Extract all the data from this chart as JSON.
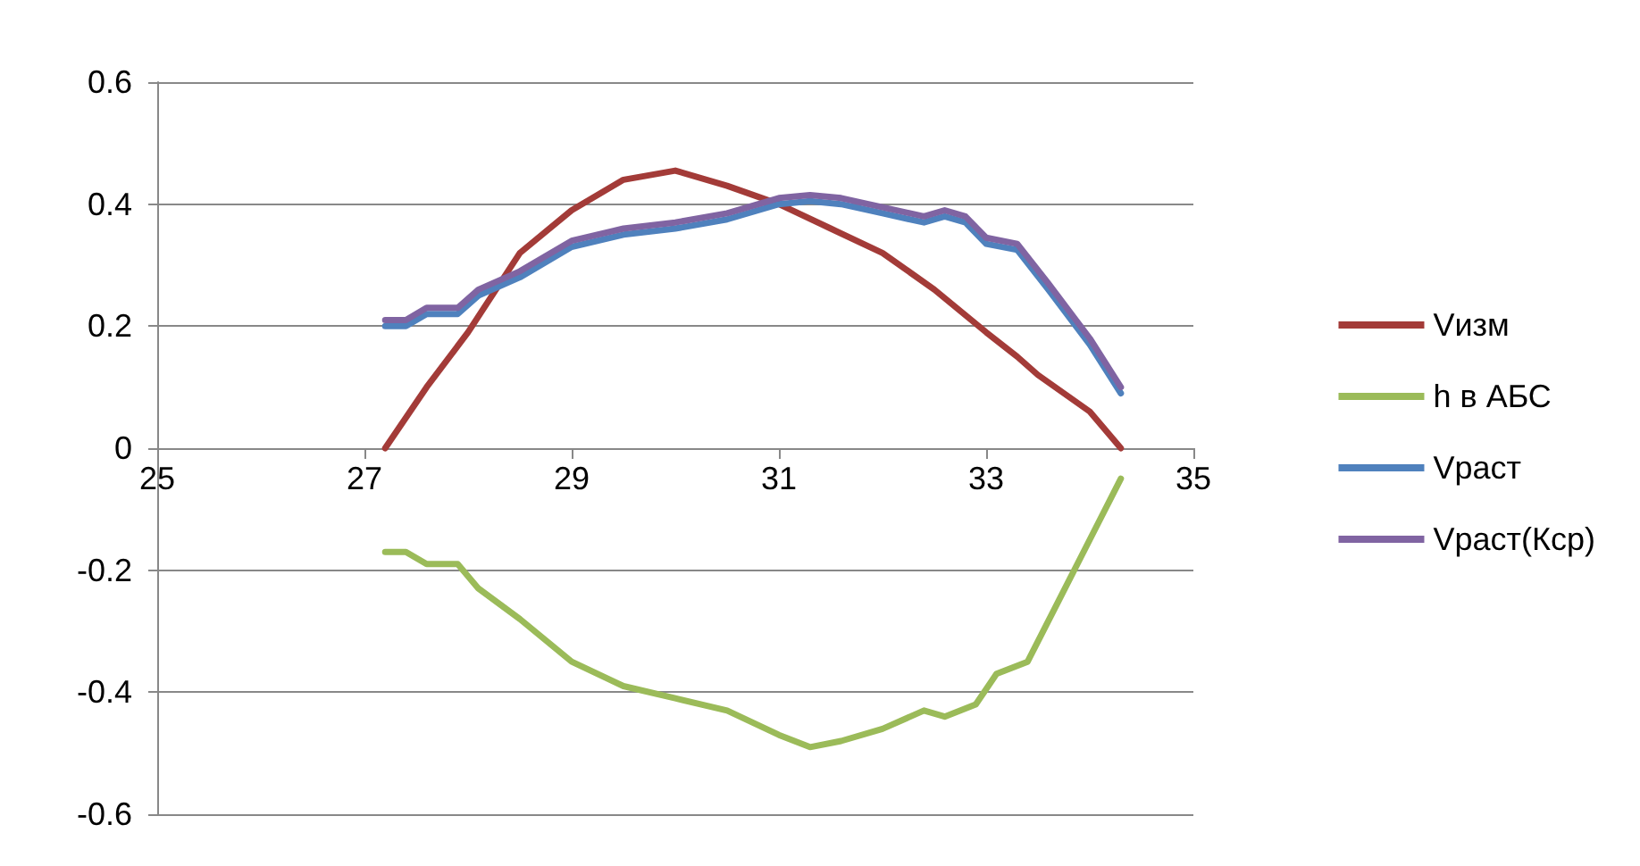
{
  "chart_data": {
    "type": "line",
    "xlim": [
      25,
      35
    ],
    "xticks": [
      25,
      27,
      29,
      31,
      33,
      35
    ],
    "ylim": [
      -0.6,
      0.6
    ],
    "yticks": [
      -0.6,
      -0.4,
      -0.2,
      0,
      0.2,
      0.4,
      0.6
    ],
    "grid": "y",
    "legend": "right",
    "marker": "none",
    "line_style": "solid",
    "series": [
      {
        "name": "Vизм",
        "color": "#a33b38",
        "x": [
          27.2,
          27.6,
          28,
          28.5,
          29,
          29.5,
          30,
          30.5,
          31,
          31.5,
          32,
          32.5,
          33,
          33.3,
          33.5,
          34,
          34.3
        ],
        "values": [
          0,
          0.1,
          0.19,
          0.32,
          0.39,
          0.44,
          0.455,
          0.43,
          0.4,
          0.36,
          0.32,
          0.26,
          0.19,
          0.15,
          0.12,
          0.06,
          0
        ]
      },
      {
        "name": "h в АБС",
        "color": "#9bbb59",
        "x": [
          27.2,
          27.4,
          27.6,
          27.9,
          28.1,
          28.5,
          29,
          29.5,
          30,
          30.5,
          31,
          31.3,
          31.6,
          32,
          32.4,
          32.6,
          32.9,
          33.1,
          33.4,
          33.7,
          34,
          34.3
        ],
        "values": [
          -0.17,
          -0.17,
          -0.19,
          -0.19,
          -0.23,
          -0.28,
          -0.35,
          -0.39,
          -0.41,
          -0.43,
          -0.47,
          -0.49,
          -0.48,
          -0.46,
          -0.43,
          -0.44,
          -0.42,
          -0.37,
          -0.35,
          -0.25,
          -0.15,
          -0.05
        ]
      },
      {
        "name": "Vраст",
        "color": "#4f81bd",
        "x": [
          27.2,
          27.4,
          27.6,
          27.9,
          28.1,
          28.5,
          29,
          29.5,
          30,
          30.5,
          31,
          31.3,
          31.6,
          32,
          32.4,
          32.6,
          32.8,
          33,
          33.3,
          33.6,
          34,
          34.3
        ],
        "values": [
          0.2,
          0.2,
          0.22,
          0.22,
          0.25,
          0.28,
          0.33,
          0.35,
          0.36,
          0.375,
          0.4,
          0.405,
          0.4,
          0.385,
          0.37,
          0.38,
          0.37,
          0.335,
          0.325,
          0.26,
          0.17,
          0.09
        ]
      },
      {
        "name": "Vраст(Кср)",
        "color": "#8064a2",
        "x": [
          27.2,
          27.4,
          27.6,
          27.9,
          28.1,
          28.5,
          29,
          29.5,
          30,
          30.5,
          31,
          31.3,
          31.6,
          32,
          32.4,
          32.6,
          32.8,
          33,
          33.3,
          33.6,
          34,
          34.3
        ],
        "values": [
          0.21,
          0.21,
          0.23,
          0.23,
          0.26,
          0.29,
          0.34,
          0.36,
          0.37,
          0.385,
          0.41,
          0.415,
          0.41,
          0.395,
          0.38,
          0.39,
          0.38,
          0.345,
          0.335,
          0.27,
          0.18,
          0.1
        ]
      }
    ]
  }
}
